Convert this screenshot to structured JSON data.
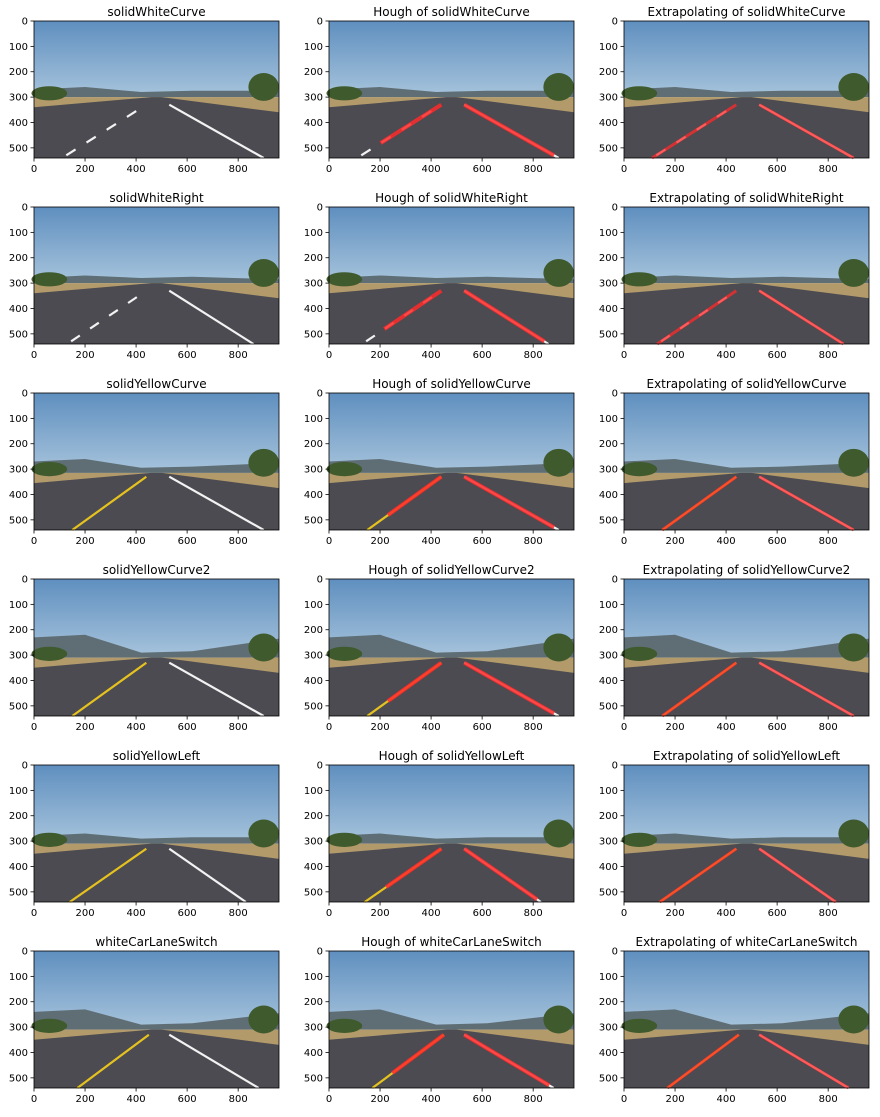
{
  "figure": {
    "rows": [
      {
        "name": "solidWhiteCurve",
        "scene": "white_curve",
        "lanes": [
          "white",
          "white"
        ],
        "titles": [
          "solidWhiteCurve",
          "Hough of solidWhiteCurve",
          "Extrapolating of solidWhiteCurve"
        ]
      },
      {
        "name": "solidWhiteRight",
        "scene": "white_right",
        "lanes": [
          "white",
          "white"
        ],
        "titles": [
          "solidWhiteRight",
          "Hough of solidWhiteRight",
          "Extrapolating of solidWhiteRight"
        ]
      },
      {
        "name": "solidYellowCurve",
        "scene": "yellow_curve",
        "lanes": [
          "yellow",
          "white"
        ],
        "titles": [
          "solidYellowCurve",
          "Hough of solidYellowCurve",
          "Extrapolating of solidYellowCurve"
        ]
      },
      {
        "name": "solidYellowCurve2",
        "scene": "yellow_curve2",
        "lanes": [
          "yellow",
          "white"
        ],
        "titles": [
          "solidYellowCurve2",
          "Hough of solidYellowCurve2",
          "Extrapolating of solidYellowCurve2"
        ]
      },
      {
        "name": "solidYellowLeft",
        "scene": "yellow_left",
        "lanes": [
          "yellow",
          "white"
        ],
        "titles": [
          "solidYellowLeft",
          "Hough of solidYellowLeft",
          "Extrapolating of solidYellowLeft"
        ]
      },
      {
        "name": "whiteCarLaneSwitch",
        "scene": "white_car_lane_switch",
        "lanes": [
          "yellow",
          "white"
        ],
        "titles": [
          "whiteCarLaneSwitch",
          "Hough of whiteCarLaneSwitch",
          "Extrapolating of whiteCarLaneSwitch"
        ]
      }
    ],
    "columns": [
      "original",
      "hough",
      "extrapolated"
    ],
    "x_axis": {
      "range": [
        0,
        960
      ],
      "ticks": [
        "0",
        "200",
        "400",
        "600",
        "800"
      ]
    },
    "y_axis": {
      "range": [
        0,
        540
      ],
      "ticks": [
        "0",
        "100",
        "200",
        "300",
        "400",
        "500"
      ]
    },
    "colors": {
      "lane_marking_red": "#ff2a2a",
      "lane_yellow": "#e6c21f",
      "lane_white": "#f2f2f2",
      "sky_top": "#5f8fbf",
      "sky_bottom": "#a7c4dc",
      "road": "#4b4b51",
      "grass": "#b29a6b",
      "hills": "#5f6e74",
      "trees": "#3f5a2c"
    }
  }
}
